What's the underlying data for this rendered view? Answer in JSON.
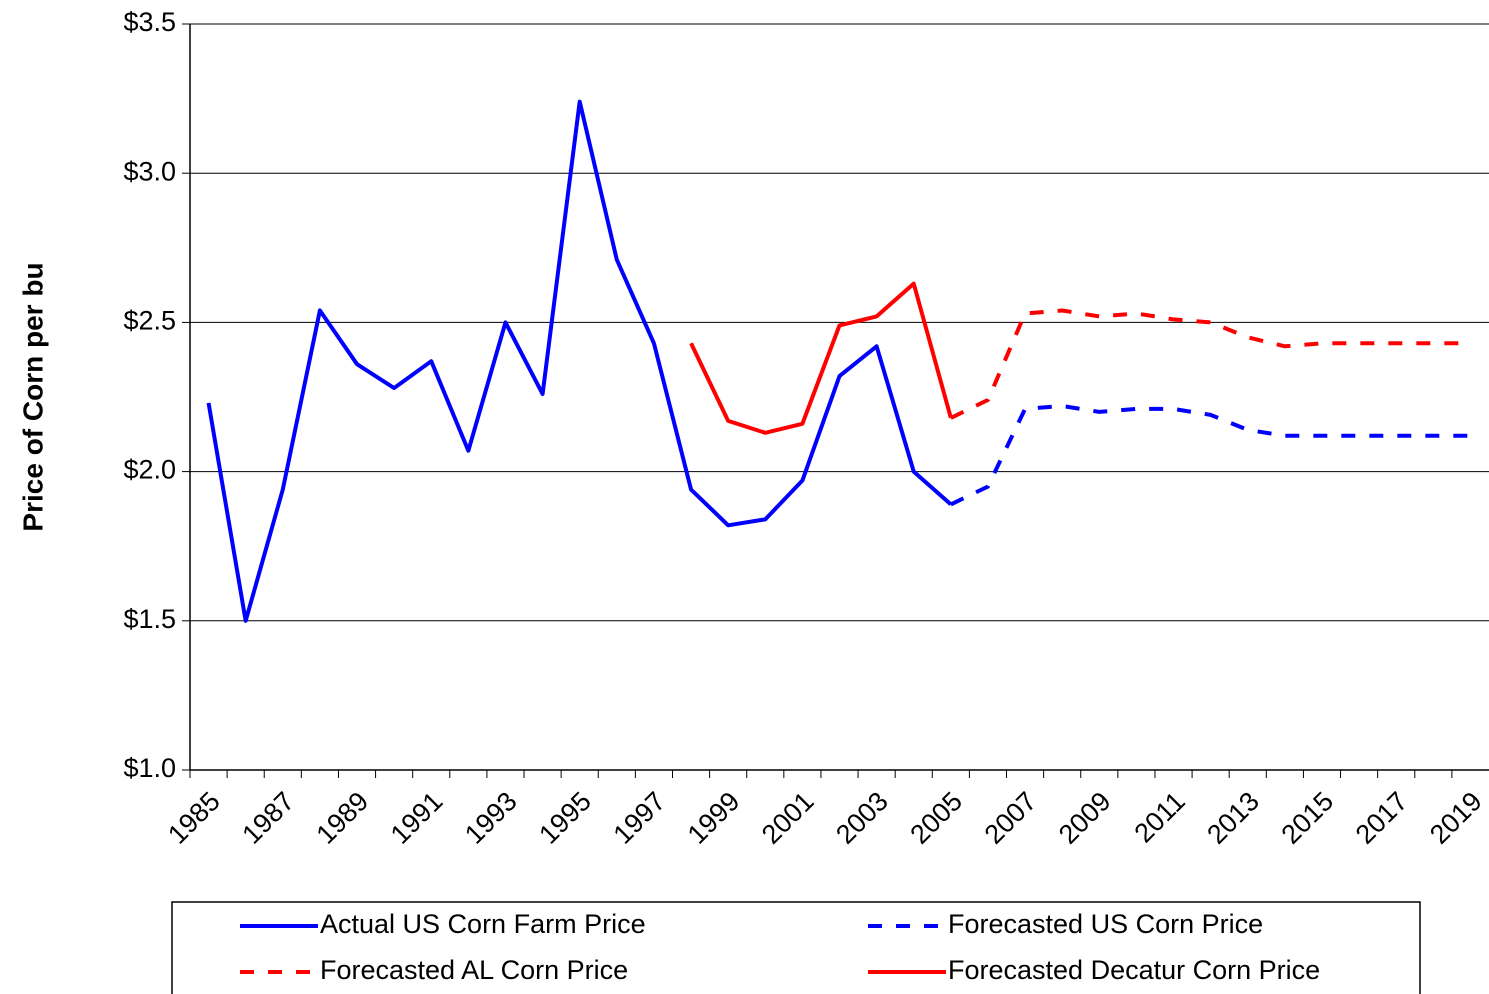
{
  "chart_data": {
    "type": "line",
    "y_label": "Price of Corn per bu",
    "categories": [
      "1985",
      null,
      "1987",
      null,
      "1989",
      null,
      "1991",
      null,
      "1993",
      null,
      "1995",
      null,
      "1997",
      null,
      "1999",
      null,
      "2001",
      null,
      "2003",
      null,
      "2005",
      null,
      "2007",
      null,
      "2009",
      null,
      "2011",
      null,
      "2013",
      null,
      "2015",
      null,
      "2017",
      null,
      "2019"
    ],
    "series": [
      {
        "name": "Actual US Corn Farm Price",
        "color": "#0000ff",
        "dash": false,
        "values": [
          2.23,
          1.5,
          1.94,
          2.54,
          2.36,
          2.28,
          2.37,
          2.07,
          2.5,
          2.26,
          3.24,
          2.71,
          2.43,
          1.94,
          1.82,
          1.84,
          1.97,
          2.32,
          2.42,
          2.0,
          1.89,
          null,
          null,
          null,
          null,
          null,
          null,
          null,
          null,
          null,
          null,
          null,
          null,
          null,
          null
        ]
      },
      {
        "name": "Forecasted US Corn Price",
        "color": "#0000ff",
        "dash": true,
        "values": [
          null,
          null,
          null,
          null,
          null,
          null,
          null,
          null,
          null,
          null,
          null,
          null,
          null,
          null,
          null,
          null,
          null,
          null,
          null,
          null,
          1.89,
          1.95,
          2.21,
          2.22,
          2.2,
          2.21,
          2.21,
          2.19,
          2.14,
          2.12,
          2.12,
          2.12,
          2.12,
          2.12,
          2.12
        ]
      },
      {
        "name": "Forecasted AL Corn Price",
        "color": "#ff0000",
        "dash": true,
        "values": [
          null,
          null,
          null,
          null,
          null,
          null,
          null,
          null,
          null,
          null,
          null,
          null,
          null,
          null,
          null,
          null,
          null,
          null,
          null,
          null,
          2.18,
          2.24,
          2.53,
          2.54,
          2.52,
          2.53,
          2.51,
          2.5,
          2.45,
          2.42,
          2.43,
          2.43,
          2.43,
          2.43,
          2.43
        ]
      },
      {
        "name": "Forecasted Decatur Corn Price",
        "color": "#ff0000",
        "dash": false,
        "values": [
          null,
          null,
          null,
          null,
          null,
          null,
          null,
          null,
          null,
          null,
          null,
          null,
          null,
          2.43,
          2.17,
          2.13,
          2.16,
          2.49,
          2.52,
          2.63,
          2.18,
          null,
          null,
          null,
          null,
          null,
          null,
          null,
          null,
          null,
          null,
          null,
          null,
          null,
          null
        ]
      }
    ],
    "ylim": [
      1.0,
      3.5
    ],
    "yticks": [
      {
        "value": 1.0,
        "label": "$1.0"
      },
      {
        "value": 1.5,
        "label": "$1.5"
      },
      {
        "value": 2.0,
        "label": "$2.0"
      },
      {
        "value": 2.5,
        "label": "$2.5"
      },
      {
        "value": 3.0,
        "label": "$3.0"
      },
      {
        "value": 3.5,
        "label": "$3.5"
      }
    ],
    "grid": true,
    "legend": "bottom"
  }
}
